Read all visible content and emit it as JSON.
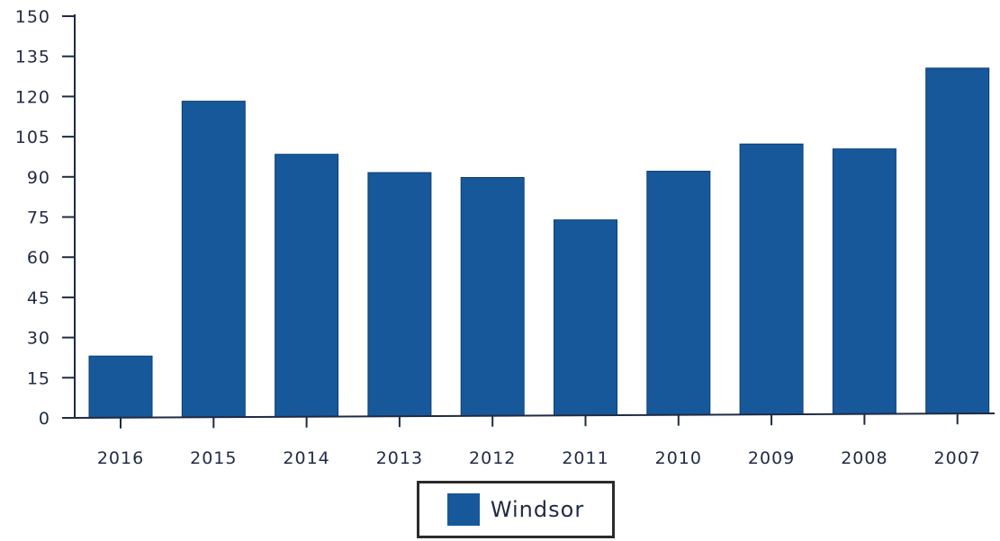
{
  "chart_data": {
    "type": "bar",
    "title": "",
    "xlabel": "",
    "ylabel": "",
    "categories": [
      "2016",
      "2015",
      "2014",
      "2013",
      "2012",
      "2011",
      "2010",
      "2009",
      "2008",
      "2007"
    ],
    "series": [
      {
        "name": "Windsor",
        "values": [
          23,
          118,
          98,
          91,
          89,
          73,
          91,
          101,
          99,
          129
        ],
        "color": "#17589b"
      }
    ],
    "ylim": [
      0,
      150
    ],
    "yticks": [
      0,
      15,
      30,
      45,
      60,
      75,
      90,
      105,
      120,
      135,
      150
    ],
    "grid": false,
    "legend_position": "bottom-center"
  }
}
